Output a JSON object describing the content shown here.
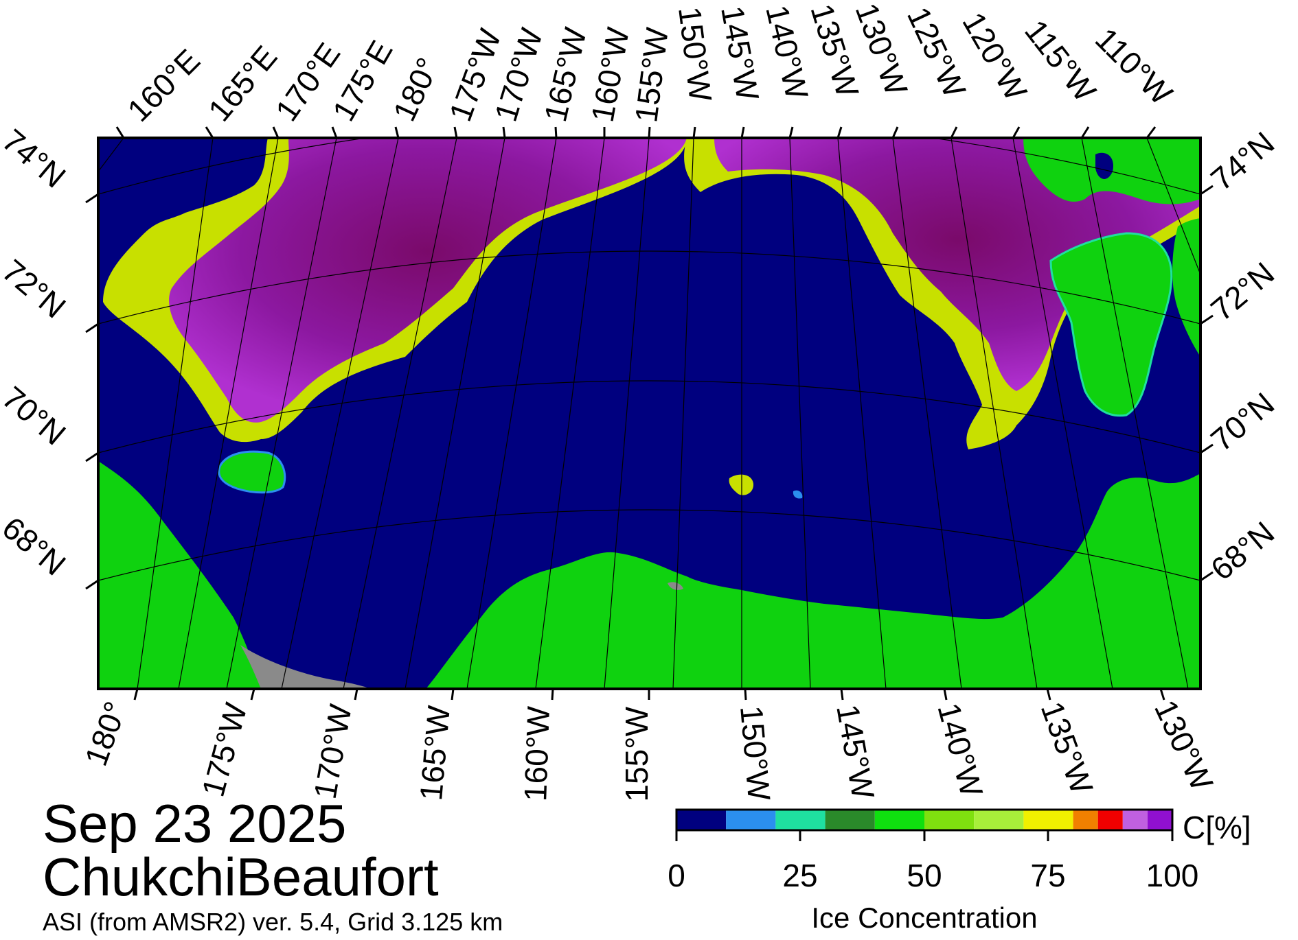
{
  "date": "Sep 23 2025",
  "region": "ChukchiBeaufort",
  "footnote": "ASI (from AMSR2) ver. 5.4,  Grid 3.125 km",
  "lat_labels": [
    "74°N",
    "72°N",
    "70°N",
    "68°N"
  ],
  "top_lon_labels": [
    "160°E",
    "165°E",
    "170°E",
    "175°E",
    "180°",
    "175°W",
    "170°W",
    "165°W",
    "160°W",
    "155°W",
    "150°W",
    "145°W",
    "140°W",
    "135°W",
    "130°W",
    "125°W",
    "120°W",
    "115°W",
    "110°W"
  ],
  "bottom_lon_labels": [
    "180°",
    "175°W",
    "170°W",
    "165°W",
    "160°W",
    "155°W",
    "150°W",
    "145°W",
    "140°W",
    "135°W",
    "130°W"
  ],
  "legend": {
    "title": "Ice Concentration",
    "unit": "C[%]",
    "ticks": [
      "0",
      "25",
      "50",
      "75",
      "100"
    ],
    "colors": [
      "#00007f",
      "#2b8fef",
      "#1fe0a0",
      "#2a8a2a",
      "#0fe00f",
      "#7fe00f",
      "#a8ef3a",
      "#f0f000",
      "#f08000",
      "#f00000",
      "#c060e0",
      "#9010d0"
    ]
  },
  "map_colors": {
    "water": "#00007f",
    "land": "#0fd20f",
    "no_data": "#8a8a8a",
    "ice_core": "#7a0a6a",
    "ice_mid": "#a020c0",
    "ice_edge": "#c8e000",
    "grid": "#000000"
  }
}
